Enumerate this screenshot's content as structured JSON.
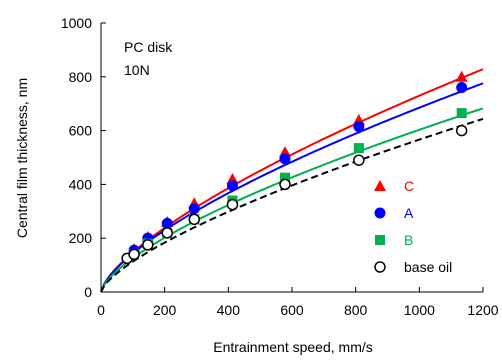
{
  "chart_data": {
    "type": "scatter",
    "xlabel": "Entrainment speed, mm/s",
    "ylabel": "Central film thickness, nm",
    "xlim": [
      0,
      1200
    ],
    "ylim": [
      0,
      1000
    ],
    "xticks": [
      0,
      200,
      400,
      600,
      800,
      1000,
      1200
    ],
    "yticks": [
      0,
      200,
      400,
      600,
      800,
      1000
    ],
    "annotation": [
      "PC disk",
      "10N"
    ],
    "legend_position": "bottom-right",
    "series": [
      {
        "name": "C",
        "marker": "triangle",
        "color": "#ff0000",
        "fit": "solid",
        "x": [
          104,
          147,
          208,
          293,
          413,
          578,
          810,
          1133
        ],
        "y": [
          160,
          205,
          260,
          330,
          420,
          520,
          640,
          800
        ],
        "fit_coef": 6.0,
        "fit_exp": 0.695
      },
      {
        "name": "A",
        "marker": "circle",
        "color": "#0000ff",
        "fit": "solid",
        "x": [
          104,
          147,
          208,
          293,
          413,
          578,
          810,
          1133
        ],
        "y": [
          155,
          200,
          255,
          310,
          395,
          495,
          615,
          760
        ],
        "fit_coef": 6.25,
        "fit_exp": 0.68
      },
      {
        "name": "B",
        "marker": "square",
        "color": "#00b050",
        "fit": "solid",
        "x": [
          104,
          147,
          208,
          293,
          413,
          578,
          810,
          1133
        ],
        "y": [
          140,
          180,
          220,
          270,
          340,
          425,
          535,
          665
        ],
        "fit_coef": 5.5,
        "fit_exp": 0.68
      },
      {
        "name": "base oil",
        "marker": "open-circle",
        "color": "#000000",
        "fit": "dashed",
        "x": [
          82,
          104,
          147,
          208,
          293,
          413,
          578,
          810,
          1133
        ],
        "y": [
          125,
          140,
          175,
          220,
          270,
          325,
          400,
          490,
          600
        ],
        "fit_coef": 4.5,
        "fit_exp": 0.7
      }
    ]
  }
}
